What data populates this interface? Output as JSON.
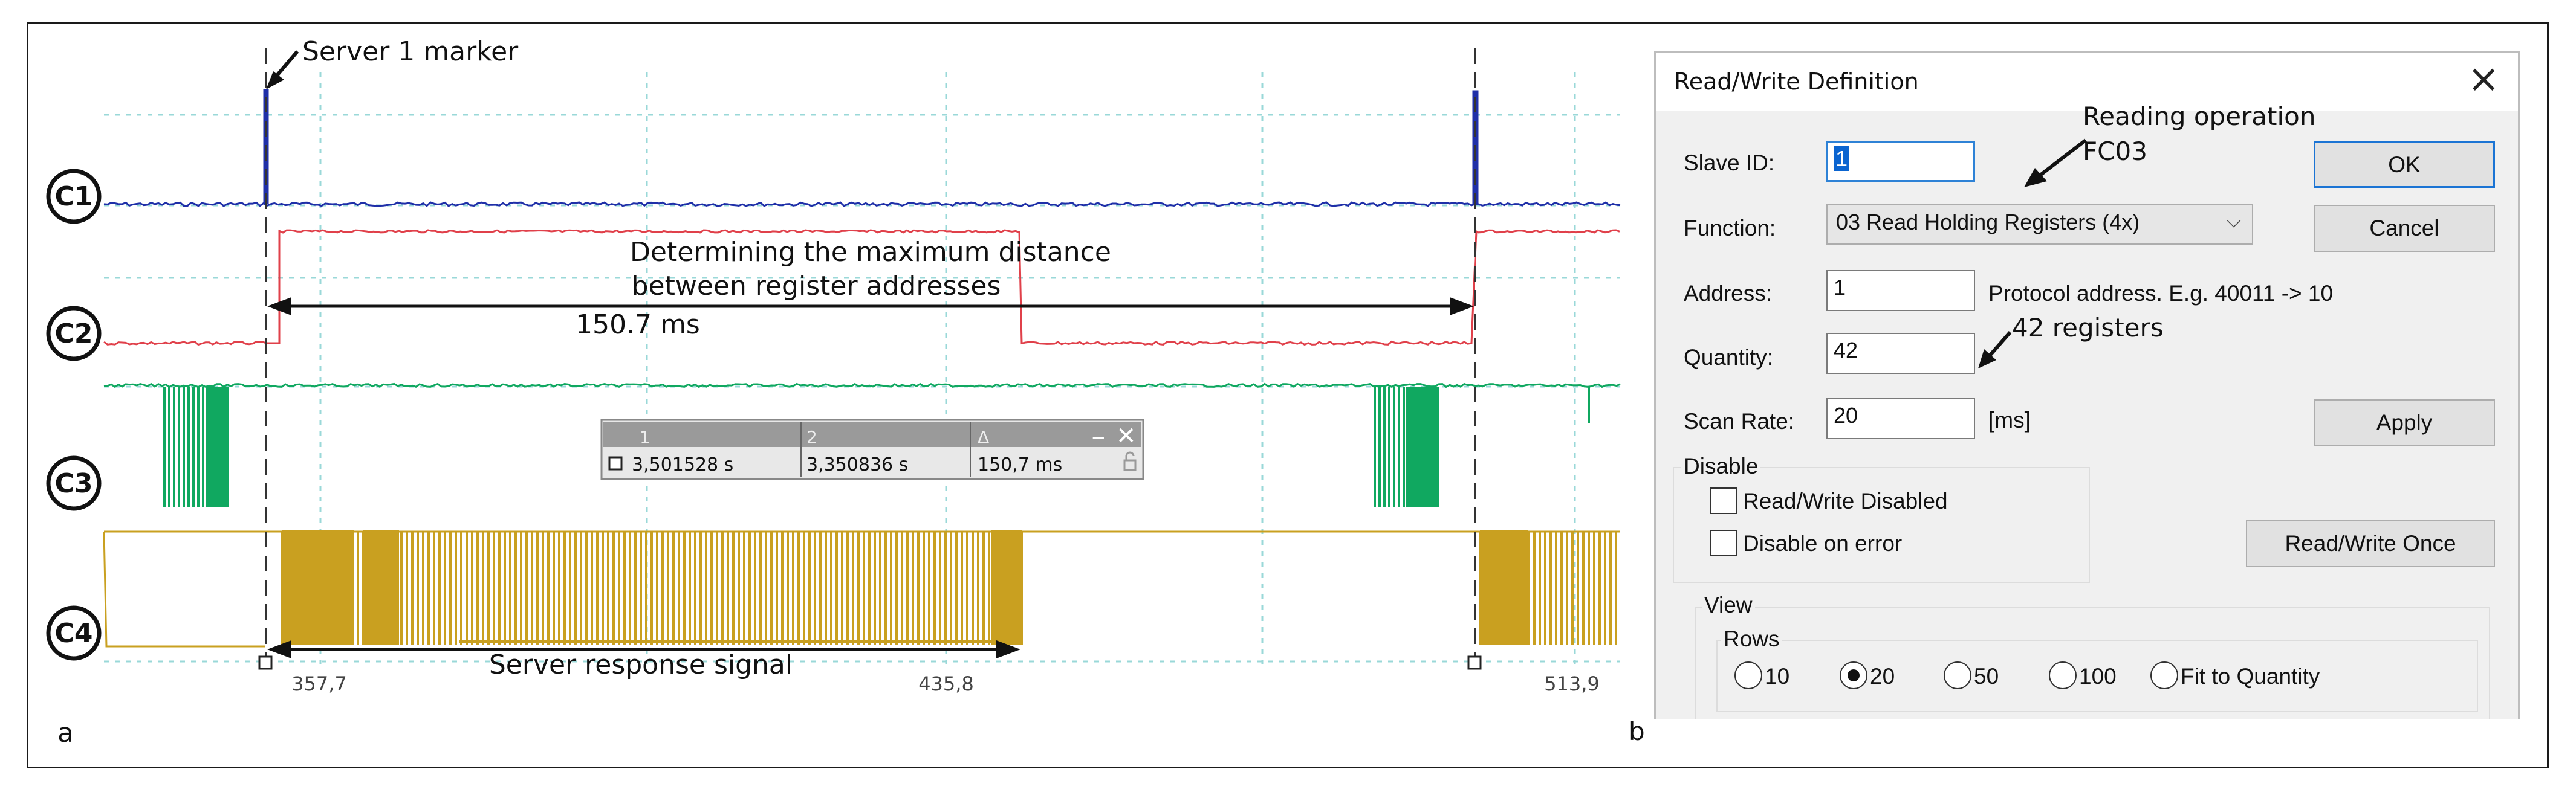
{
  "panel_a": {
    "letter": "a",
    "channels": [
      "C1",
      "C2",
      "C3",
      "C4"
    ],
    "annotations": {
      "marker_label": "Server 1 marker",
      "distance_line1": "Determining the maximum distance",
      "distance_line2": "between register addresses",
      "distance_value": "150.7 ms",
      "response_label": "Server response signal"
    },
    "timeline_labels": [
      "357,7",
      "435,8",
      "513,9"
    ],
    "cursor_box": {
      "headers": [
        "1",
        "2",
        "Δ"
      ],
      "values": [
        "3,501528 s",
        "3,350836 s",
        "150,7 ms"
      ]
    },
    "colors": {
      "c1": "#1f2fa8",
      "c2": "#e0404a",
      "c3": "#10a860",
      "c4": "#c9a020",
      "grid": "#9ad8d8"
    }
  },
  "panel_b": {
    "letter": "b",
    "dialog": {
      "title": "Read/Write Definition",
      "close_icon": "close-icon",
      "slave_id_label": "Slave ID:",
      "slave_id_value": "1",
      "function_label": "Function:",
      "function_value": "03 Read Holding Registers (4x)",
      "address_label": "Address:",
      "address_value": "1",
      "address_hint": "Protocol address. E.g. 40011 -> 10",
      "quantity_label": "Quantity:",
      "quantity_value": "42",
      "scan_rate_label": "Scan Rate:",
      "scan_rate_value": "20",
      "scan_rate_unit": "[ms]",
      "ok_label": "OK",
      "cancel_label": "Cancel",
      "apply_label": "Apply",
      "read_write_once_label": "Read/Write Once",
      "disable_group": "Disable",
      "rw_disabled_label": "Read/Write Disabled",
      "disable_on_error_label": "Disable on error",
      "view_group": "View",
      "rows_group": "Rows",
      "rows_options": [
        "10",
        "20",
        "50",
        "100",
        "Fit to Quantity"
      ],
      "rows_selected": "20"
    },
    "annotations": {
      "reading_line1": "Reading operation",
      "reading_line2": "FC03",
      "registers": "42 registers"
    }
  }
}
